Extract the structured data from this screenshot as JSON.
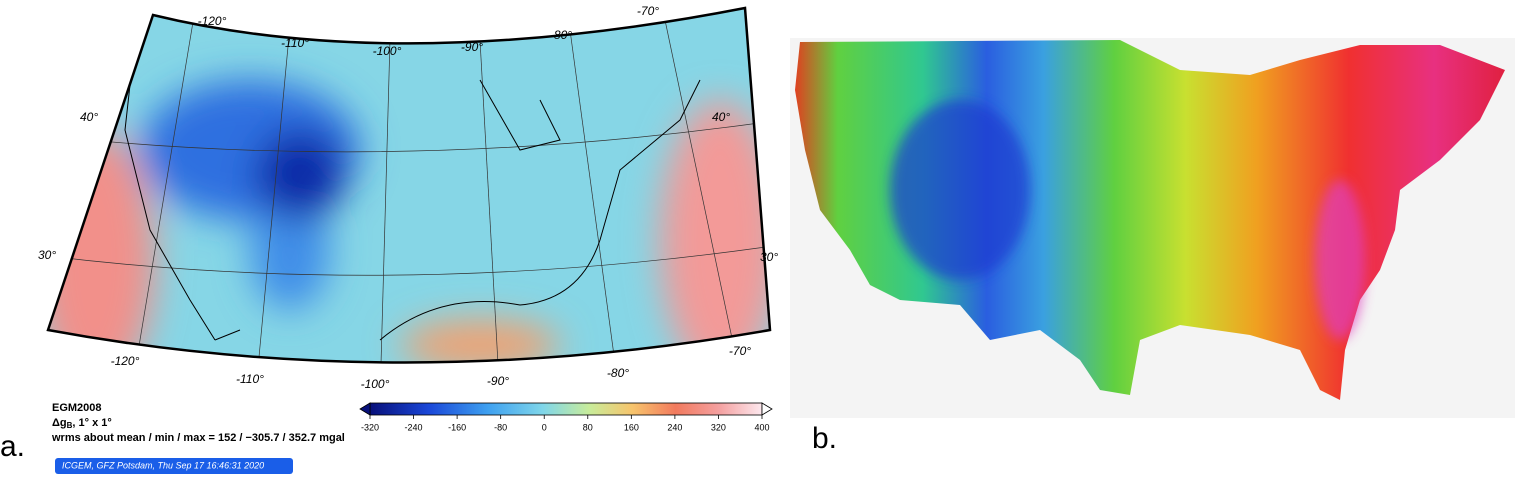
{
  "panel_a": {
    "label": "a.",
    "lon_top": [
      "-120°",
      "-110°",
      "-100°",
      "-90°",
      "-80°",
      "-70°"
    ],
    "lon_bottom": [
      "-120°",
      "-110°",
      "-100°",
      "-90°",
      "-80°",
      "-70°"
    ],
    "lat_left": [
      "40°",
      "30°"
    ],
    "lat_right": [
      "40°",
      "30°"
    ],
    "legend": {
      "model": "EGM2008",
      "quantity": "Δg",
      "subscript": "B",
      "resolution": ", 1° x 1°",
      "stats": "wrms about mean / min / max = 152 / −305.7 / 352.7 mgal"
    },
    "credit": "ICGEM, GFZ Potsdam, Thu Sep 17 16:46:31 2020",
    "colorbar": {
      "range": [
        -320,
        400
      ],
      "ticks": [
        -320,
        -240,
        -160,
        -80,
        0,
        80,
        160,
        240,
        320,
        400
      ]
    }
  },
  "panel_b": {
    "label": "b."
  }
}
